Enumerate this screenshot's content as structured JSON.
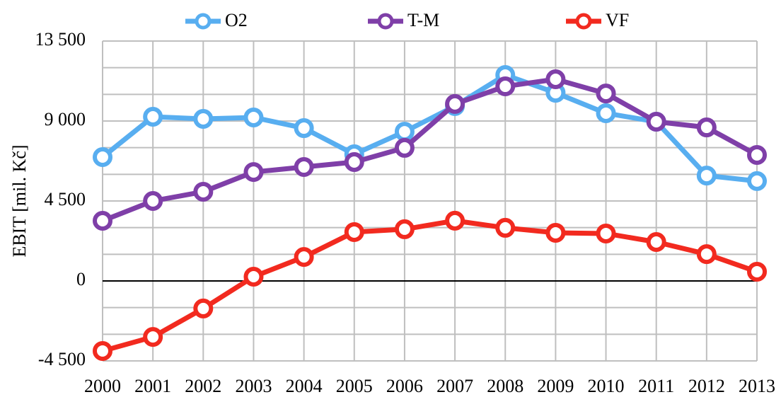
{
  "chart_data": {
    "type": "line",
    "y_label": "EBIT [mil. Kč]",
    "categories": [
      "2000",
      "2001",
      "2002",
      "2003",
      "2004",
      "2005",
      "2006",
      "2007",
      "2008",
      "2009",
      "2010",
      "2011",
      "2012",
      "2013"
    ],
    "series": [
      {
        "name": "O2",
        "color": "#58aef0",
        "values": [
          6970,
          9240,
          9120,
          9200,
          8600,
          7130,
          8400,
          9840,
          11590,
          10590,
          9440,
          8960,
          5930,
          5620
        ]
      },
      {
        "name": "T-M",
        "color": "#7f3fa8",
        "values": [
          3385,
          4500,
          5020,
          6130,
          6410,
          6690,
          7490,
          9960,
          10950,
          11350,
          10550,
          8960,
          8640,
          7090
        ]
      },
      {
        "name": "VF",
        "color": "#f22a1f",
        "values": [
          -3940,
          -3150,
          -1550,
          240,
          1350,
          2750,
          2910,
          3390,
          2990,
          2710,
          2670,
          2190,
          1510,
          520
        ]
      }
    ],
    "ylim": [
      -4500,
      13500
    ],
    "yticks": [
      {
        "value": -4500,
        "label": "-4 500"
      },
      0,
      {
        "value": 4500,
        "label": "4 500"
      },
      {
        "value": 9000,
        "label": "9 000"
      },
      {
        "value": 13500,
        "label": "13 500"
      }
    ],
    "minor_yticks": [
      -3000,
      -1500,
      1500,
      3000,
      6000,
      7500,
      10500,
      12000
    ],
    "grid": true,
    "legend": "top"
  }
}
